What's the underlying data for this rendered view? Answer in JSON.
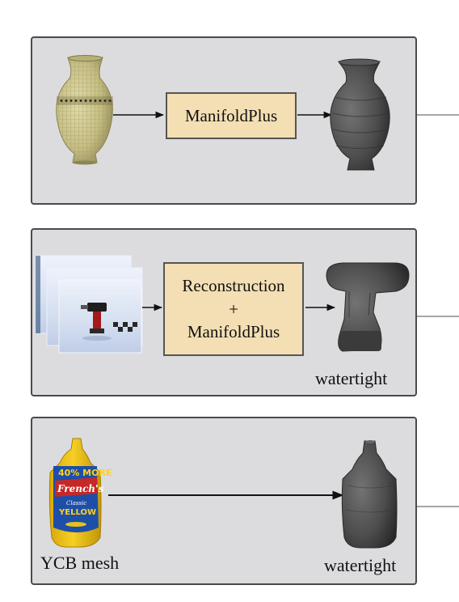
{
  "panels": [
    {
      "process_lines": [
        "ManifoldPlus"
      ],
      "output_label": ""
    },
    {
      "process_lines": [
        "Reconstruction",
        "+",
        "ManifoldPlus"
      ],
      "output_label": "watertight"
    },
    {
      "input_label": "YCB mesh",
      "output_label": "watertight"
    }
  ],
  "mustard_label": {
    "promo": "40% MORE",
    "brand": "French's",
    "small": "Classic",
    "product": "YELLOW"
  },
  "colors": {
    "panel_fill": "#dcdcde",
    "panel_border": "#4a4a4a",
    "process_fill": "#f3dfb3",
    "mesh_gray": "#4a4a4a",
    "vase_texture": "#c9c38c",
    "mustard_yellow": "#f1c40f",
    "mustard_red": "#c62828",
    "photo_background": "#d6e1f1"
  },
  "icons": [
    "vase-icon",
    "vase-mesh-icon",
    "photo-stack-icon",
    "drill-mesh-icon",
    "mustard-bottle-icon",
    "bottle-mesh-icon"
  ]
}
